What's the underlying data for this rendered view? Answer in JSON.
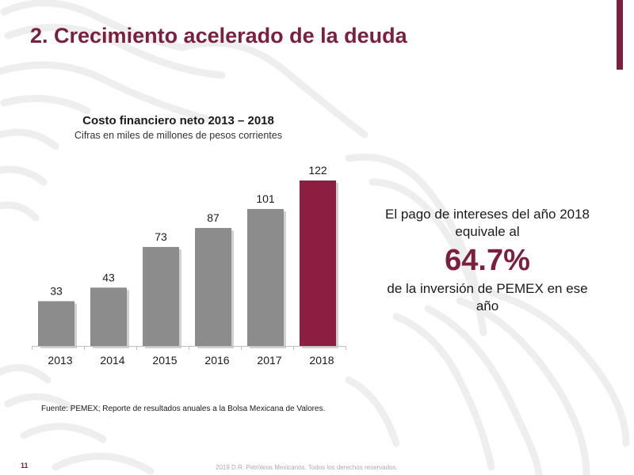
{
  "slide": {
    "title": "2. Crecimiento acelerado de la deuda",
    "accent_color": "#7a1f3d",
    "page_number": "11",
    "copyright": "2019 D.R. Petróleos Mexicanos. Todos los derechos reservados.",
    "source": "Fuente: PEMEX; Reporte de resultados anuales a la Bolsa Mexicana de Valores."
  },
  "chart_data": {
    "type": "bar",
    "title": "Costo financiero neto 2013 – 2018",
    "subtitle": "Cifras en miles de millones de pesos corrientes",
    "categories": [
      "2013",
      "2014",
      "2015",
      "2016",
      "2017",
      "2018"
    ],
    "values": [
      33,
      43,
      73,
      87,
      101,
      122
    ],
    "data_labels": [
      "33",
      "43",
      "73",
      "87",
      "101",
      "122"
    ],
    "ylim": [
      0,
      122
    ],
    "highlight_index": 5,
    "bar_color": "#8c8c8c",
    "highlight_color": "#8b1e41",
    "grid": false,
    "legend": "none"
  },
  "callout": {
    "line1": "El pago de intereses del año 2018",
    "line2": "equivale al",
    "value": "64.7%",
    "line3": "de la inversión de PEMEX en ese",
    "line4": "año"
  }
}
